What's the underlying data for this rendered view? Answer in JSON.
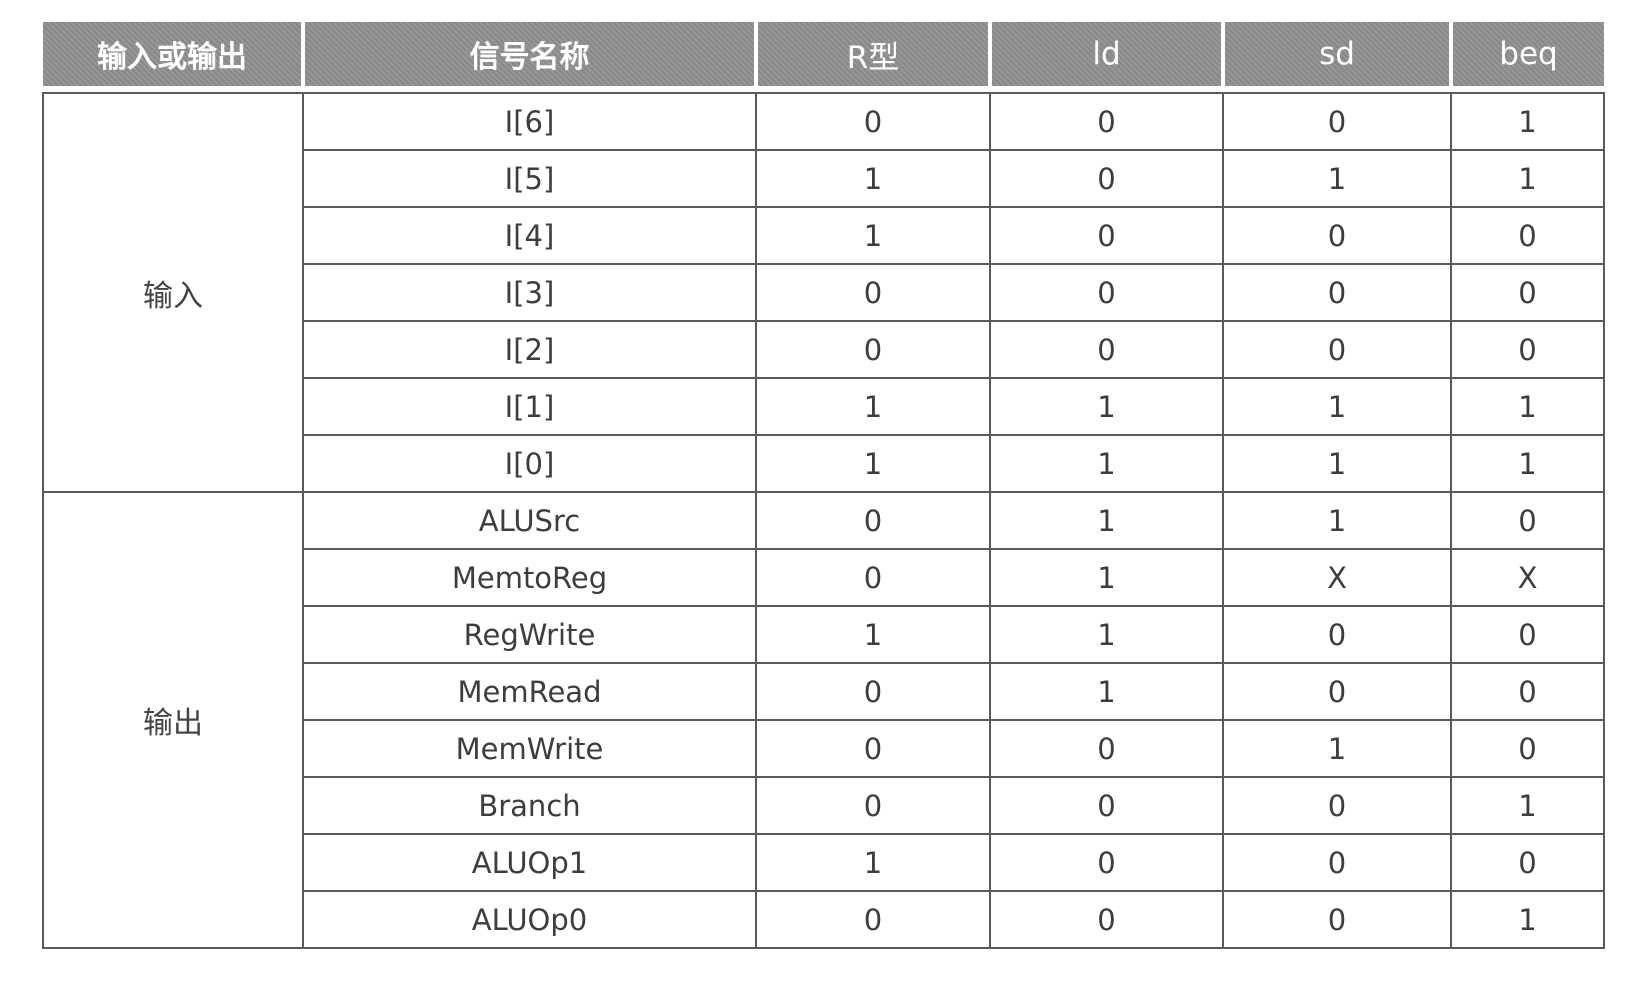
{
  "table": {
    "headers": [
      "输入或输出",
      "信号名称",
      "R型",
      "ld",
      "sd",
      "beq"
    ],
    "groups": [
      {
        "label": "输入",
        "rows": [
          {
            "signal": "I[6]",
            "r": "0",
            "ld": "0",
            "sd": "0",
            "beq": "1"
          },
          {
            "signal": "I[5]",
            "r": "1",
            "ld": "0",
            "sd": "1",
            "beq": "1"
          },
          {
            "signal": "I[4]",
            "r": "1",
            "ld": "0",
            "sd": "0",
            "beq": "0"
          },
          {
            "signal": "I[3]",
            "r": "0",
            "ld": "0",
            "sd": "0",
            "beq": "0"
          },
          {
            "signal": "I[2]",
            "r": "0",
            "ld": "0",
            "sd": "0",
            "beq": "0"
          },
          {
            "signal": "I[1]",
            "r": "1",
            "ld": "1",
            "sd": "1",
            "beq": "1"
          },
          {
            "signal": "I[0]",
            "r": "1",
            "ld": "1",
            "sd": "1",
            "beq": "1"
          }
        ]
      },
      {
        "label": "输出",
        "rows": [
          {
            "signal": "ALUSrc",
            "r": "0",
            "ld": "1",
            "sd": "1",
            "beq": "0"
          },
          {
            "signal": "MemtoReg",
            "r": "0",
            "ld": "1",
            "sd": "X",
            "beq": "X"
          },
          {
            "signal": "RegWrite",
            "r": "1",
            "ld": "1",
            "sd": "0",
            "beq": "0"
          },
          {
            "signal": "MemRead",
            "r": "0",
            "ld": "1",
            "sd": "0",
            "beq": "0"
          },
          {
            "signal": "MemWrite",
            "r": "0",
            "ld": "0",
            "sd": "1",
            "beq": "0"
          },
          {
            "signal": "Branch",
            "r": "0",
            "ld": "0",
            "sd": "0",
            "beq": "1"
          },
          {
            "signal": "ALUOp1",
            "r": "1",
            "ld": "0",
            "sd": "0",
            "beq": "0"
          },
          {
            "signal": "ALUOp0",
            "r": "0",
            "ld": "0",
            "sd": "0",
            "beq": "1"
          }
        ]
      }
    ]
  }
}
